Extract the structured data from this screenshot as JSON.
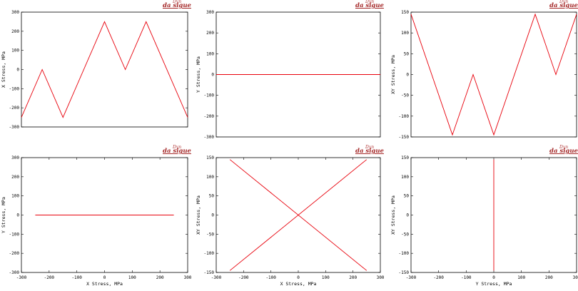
{
  "brand": {
    "top": "Dyn",
    "main": "da sigue"
  },
  "colors": {
    "line": "#e8000b",
    "axis": "#000000",
    "grid": "#bbbbbb"
  },
  "chart_data": [
    {
      "id": "x-stress",
      "type": "line",
      "xlim": [
        0,
        1
      ],
      "ylim": [
        -300,
        300
      ],
      "xticks": [],
      "yticks": [
        -300,
        -200,
        -100,
        0,
        100,
        200,
        300
      ],
      "xlabel": "",
      "ylabel": "X Stress, MPa",
      "series": [
        {
          "x": [
            0,
            0.125,
            0.25,
            0.5,
            0.625,
            0.75,
            1
          ],
          "y": [
            -250,
            0,
            -250,
            250,
            0,
            250,
            -250
          ]
        }
      ]
    },
    {
      "id": "y-stress",
      "type": "line",
      "xlim": [
        0,
        1
      ],
      "ylim": [
        -300,
        300
      ],
      "xticks": [],
      "yticks": [
        -300,
        -200,
        -100,
        0,
        100,
        200,
        300
      ],
      "xlabel": "",
      "ylabel": "Y Stress, MPa",
      "series": [
        {
          "x": [
            0,
            1
          ],
          "y": [
            0,
            0
          ]
        }
      ]
    },
    {
      "id": "xy-stress",
      "type": "line",
      "xlim": [
        0,
        1
      ],
      "ylim": [
        -150,
        150
      ],
      "xticks": [],
      "yticks": [
        -150,
        -100,
        -50,
        0,
        50,
        100,
        150
      ],
      "xlabel": "",
      "ylabel": "XY Stress, MPa",
      "series": [
        {
          "x": [
            0,
            0.25,
            0.375,
            0.5,
            0.75,
            0.875,
            1
          ],
          "y": [
            145,
            -145,
            0,
            -145,
            145,
            0,
            145
          ]
        }
      ]
    },
    {
      "id": "y-vs-x",
      "type": "line",
      "xlim": [
        -300,
        300
      ],
      "ylim": [
        -300,
        300
      ],
      "xticks": [
        -300,
        -200,
        -100,
        0,
        100,
        200,
        300
      ],
      "yticks": [
        -300,
        -200,
        -100,
        0,
        100,
        200,
        300
      ],
      "xlabel": "X Stress, MPa",
      "ylabel": "Y Stress, MPa",
      "series": [
        {
          "x": [
            -250,
            250
          ],
          "y": [
            0,
            0
          ]
        }
      ]
    },
    {
      "id": "xy-vs-x",
      "type": "line",
      "xlim": [
        -300,
        300
      ],
      "ylim": [
        -150,
        150
      ],
      "xticks": [
        -300,
        -200,
        -100,
        0,
        100,
        200,
        300
      ],
      "yticks": [
        -150,
        -100,
        -50,
        0,
        50,
        100,
        150
      ],
      "xlabel": "X Stress, MPa",
      "ylabel": "XY Stress, MPa",
      "series": [
        {
          "x": [
            -250,
            250
          ],
          "y": [
            -145,
            145
          ]
        },
        {
          "x": [
            -250,
            250
          ],
          "y": [
            145,
            -145
          ]
        }
      ]
    },
    {
      "id": "xy-vs-y",
      "type": "line",
      "xlim": [
        -300,
        300
      ],
      "ylim": [
        -150,
        150
      ],
      "xticks": [
        -300,
        -200,
        -100,
        0,
        100,
        200,
        300
      ],
      "yticks": [
        -150,
        -100,
        -50,
        0,
        50,
        100,
        150
      ],
      "xlabel": "Y Stress, MPa",
      "ylabel": "XY Stress, MPa",
      "series": [
        {
          "x": [
            0,
            0
          ],
          "y": [
            -145,
            145
          ]
        }
      ]
    }
  ]
}
